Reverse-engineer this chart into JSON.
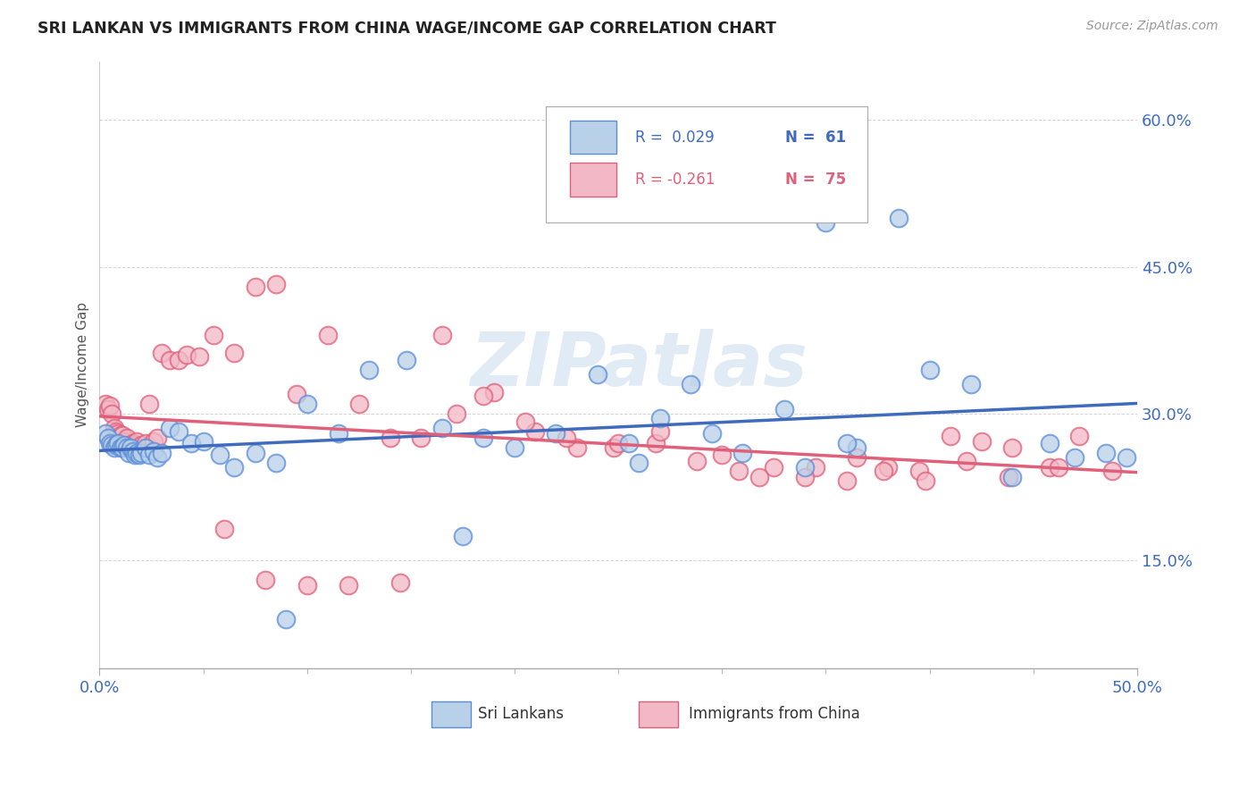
{
  "title": "SRI LANKAN VS IMMIGRANTS FROM CHINA WAGE/INCOME GAP CORRELATION CHART",
  "source": "Source: ZipAtlas.com",
  "ylabel": "Wage/Income Gap",
  "xmin": 0.0,
  "xmax": 0.5,
  "ymin": 0.04,
  "ymax": 0.66,
  "sri_lankan_fill": "#b8d0e8",
  "sri_lankan_edge": "#5b8dd9",
  "china_fill": "#f2b8c6",
  "china_edge": "#e0607a",
  "sri_lankan_line_color": "#3f6bbf",
  "china_line_color": "#e0607a",
  "watermark": "ZIPatlas",
  "background_color": "#ffffff",
  "grid_color": "#d0d0d0",
  "sri_x": [
    0.003,
    0.004,
    0.005,
    0.006,
    0.007,
    0.008,
    0.009,
    0.01,
    0.011,
    0.012,
    0.013,
    0.014,
    0.015,
    0.016,
    0.017,
    0.018,
    0.019,
    0.02,
    0.022,
    0.024,
    0.026,
    0.028,
    0.03,
    0.034,
    0.038,
    0.044,
    0.05,
    0.058,
    0.065,
    0.075,
    0.085,
    0.1,
    0.115,
    0.13,
    0.148,
    0.165,
    0.185,
    0.2,
    0.22,
    0.24,
    0.255,
    0.27,
    0.285,
    0.31,
    0.33,
    0.35,
    0.365,
    0.385,
    0.4,
    0.42,
    0.44,
    0.458,
    0.47,
    0.485,
    0.495,
    0.175,
    0.26,
    0.295,
    0.34,
    0.36,
    0.09
  ],
  "sri_y": [
    0.28,
    0.275,
    0.27,
    0.268,
    0.265,
    0.268,
    0.27,
    0.265,
    0.265,
    0.268,
    0.265,
    0.26,
    0.265,
    0.262,
    0.258,
    0.26,
    0.258,
    0.26,
    0.265,
    0.258,
    0.262,
    0.255,
    0.26,
    0.285,
    0.282,
    0.27,
    0.272,
    0.258,
    0.245,
    0.26,
    0.25,
    0.31,
    0.28,
    0.345,
    0.355,
    0.285,
    0.275,
    0.265,
    0.28,
    0.34,
    0.27,
    0.295,
    0.33,
    0.26,
    0.305,
    0.495,
    0.265,
    0.5,
    0.345,
    0.33,
    0.235,
    0.27,
    0.255,
    0.26,
    0.255,
    0.175,
    0.25,
    0.28,
    0.245,
    0.27,
    0.09
  ],
  "china_x": [
    0.003,
    0.004,
    0.005,
    0.006,
    0.007,
    0.008,
    0.009,
    0.01,
    0.011,
    0.012,
    0.013,
    0.014,
    0.015,
    0.016,
    0.017,
    0.018,
    0.019,
    0.02,
    0.022,
    0.024,
    0.026,
    0.028,
    0.03,
    0.034,
    0.038,
    0.042,
    0.048,
    0.055,
    0.065,
    0.075,
    0.085,
    0.095,
    0.11,
    0.125,
    0.14,
    0.155,
    0.172,
    0.19,
    0.21,
    0.23,
    0.248,
    0.268,
    0.288,
    0.308,
    0.325,
    0.345,
    0.365,
    0.38,
    0.395,
    0.41,
    0.425,
    0.44,
    0.458,
    0.472,
    0.488,
    0.06,
    0.08,
    0.1,
    0.12,
    0.145,
    0.165,
    0.185,
    0.205,
    0.225,
    0.25,
    0.27,
    0.3,
    0.318,
    0.34,
    0.36,
    0.378,
    0.398,
    0.418,
    0.438,
    0.462
  ],
  "china_y": [
    0.31,
    0.305,
    0.308,
    0.3,
    0.285,
    0.282,
    0.28,
    0.278,
    0.278,
    0.272,
    0.275,
    0.268,
    0.265,
    0.27,
    0.268,
    0.272,
    0.265,
    0.268,
    0.27,
    0.31,
    0.272,
    0.275,
    0.362,
    0.355,
    0.355,
    0.36,
    0.358,
    0.38,
    0.362,
    0.43,
    0.432,
    0.32,
    0.38,
    0.31,
    0.275,
    0.275,
    0.3,
    0.322,
    0.282,
    0.265,
    0.265,
    0.27,
    0.252,
    0.242,
    0.245,
    0.245,
    0.255,
    0.245,
    0.242,
    0.277,
    0.272,
    0.265,
    0.245,
    0.277,
    0.242,
    0.182,
    0.13,
    0.125,
    0.125,
    0.128,
    0.38,
    0.318,
    0.292,
    0.275,
    0.27,
    0.282,
    0.258,
    0.235,
    0.235,
    0.232,
    0.242,
    0.232,
    0.252,
    0.235,
    0.245
  ]
}
